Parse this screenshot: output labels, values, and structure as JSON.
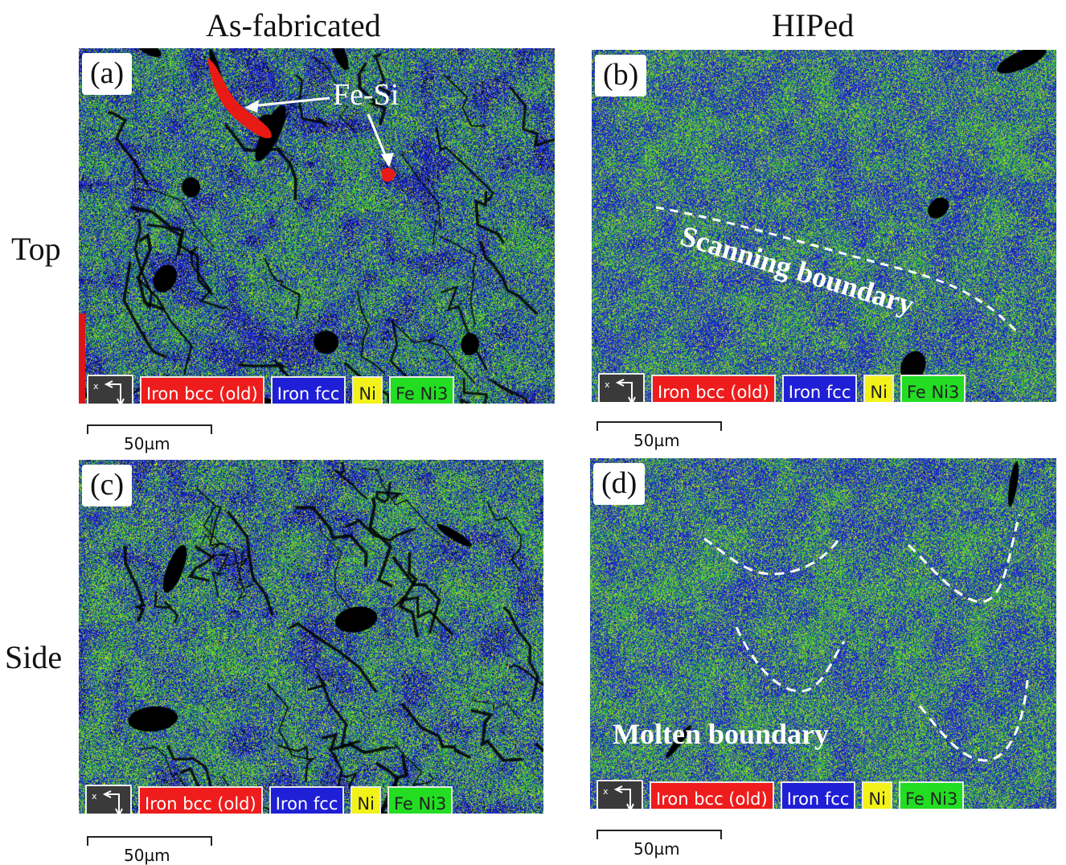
{
  "columns": {
    "left": "As-fabricated",
    "right": "HIPed"
  },
  "rows": {
    "top": "Top",
    "bottom": "Side"
  },
  "panels": {
    "a": {
      "label": "(a)",
      "annotation": "Fe-Si"
    },
    "b": {
      "label": "(b)",
      "annotation": "Scanning boundary"
    },
    "c": {
      "label": "(c)"
    },
    "d": {
      "label": "(d)",
      "annotation": "Molten boundary"
    }
  },
  "legend": {
    "items": [
      {
        "label": "Iron bcc (old)",
        "color": "#ee1c1c",
        "text_color": "#ffffff"
      },
      {
        "label": "Iron fcc",
        "color": "#1f1fd6",
        "text_color": "#ffffff"
      },
      {
        "label": "Ni",
        "color": "#f2f21a",
        "text_color": "#222222"
      },
      {
        "label": "Fe Ni3",
        "color": "#22dd22",
        "text_color": "#222222"
      }
    ]
  },
  "scale_bar": "50µm",
  "colors": {
    "fcc": "#1f2fc4",
    "ni3": "#3fbf3a",
    "ni": "#c8d82a",
    "bcc": "#e01818",
    "void": "#000000"
  }
}
